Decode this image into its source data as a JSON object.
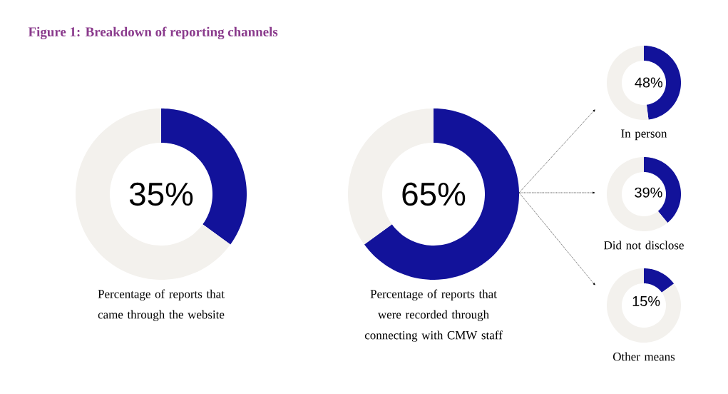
{
  "chart_data": [
    {
      "type": "donut",
      "title": "Percentage of reports that came through the website",
      "annotations": [
        "Figure 1: Breakdown of reporting channels"
      ],
      "categories": [
        null,
        null
      ],
      "values": [
        35,
        65
      ],
      "colors": [
        "#12129a",
        "#f3f1ed"
      ],
      "value_labels": [
        "35%",
        null
      ]
    },
    {
      "type": "donut",
      "title": "Percentage of reports that were recorded through connecting with CMW staff",
      "categories": [
        null,
        null
      ],
      "values": [
        65,
        35
      ],
      "colors": [
        "#12129a",
        "#f3f1ed"
      ],
      "value_labels": [
        "65%",
        null
      ]
    },
    {
      "type": "donut",
      "title": "In person",
      "categories": [
        null,
        null
      ],
      "values": [
        48,
        52
      ],
      "colors": [
        "#12129a",
        "#f3f1ed"
      ],
      "value_labels": [
        "48%",
        null
      ]
    },
    {
      "type": "donut",
      "title": "Did not disclose",
      "categories": [
        null,
        null
      ],
      "values": [
        39,
        61
      ],
      "colors": [
        "#12129a",
        "#f3f1ed"
      ],
      "value_labels": [
        "39%",
        null
      ]
    },
    {
      "type": "donut",
      "title": "Other means",
      "categories": [
        null,
        null
      ],
      "values": [
        15,
        85
      ],
      "colors": [
        "#12129a",
        "#f3f1ed"
      ],
      "value_labels": [
        "15%",
        null
      ]
    }
  ]
}
